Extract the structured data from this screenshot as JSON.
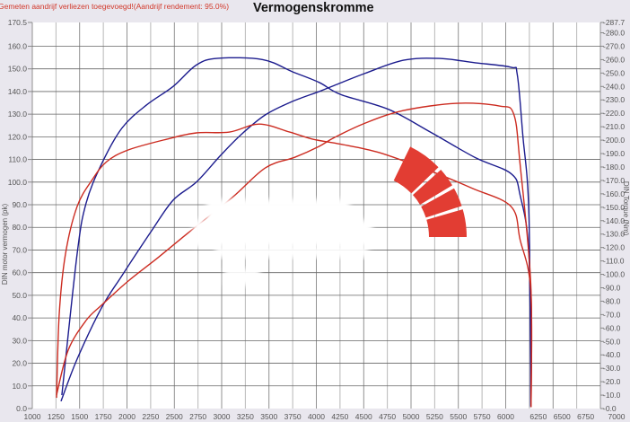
{
  "header": {
    "note": "Gemeten aandrijf verliezen toegevoegd!(Aandrijf rendement: 95.0%)",
    "title": "Vermogenskromme"
  },
  "colors": {
    "tuned": "#1c1c8e",
    "stock": "#cc2b20",
    "logo": "#e23d33",
    "background": "#e9e7ee",
    "plot": "#ffffff"
  },
  "chart_data": {
    "type": "line",
    "title": "Vermogenskromme",
    "xlabel": "",
    "ylabel_left": "DIN motor vermogen (pk)",
    "ylabel_right": "DIN Torque (Nm)",
    "xlim": [
      1000,
      7000
    ],
    "ylim_left": [
      0,
      170.5
    ],
    "ylim_right": [
      0,
      287.7
    ],
    "grid": true,
    "x_ticks": [
      "1000",
      "1250",
      "1500",
      "1750",
      "2000",
      "2250",
      "2500",
      "2750",
      "3000",
      "3250",
      "3500",
      "3750",
      "4000",
      "4250",
      "4500",
      "4750",
      "5000",
      "5250",
      "5500",
      "5750",
      "6000",
      "6250",
      "6500",
      "6750",
      "7000"
    ],
    "left_ticks": [
      "0.0",
      "10.0",
      "20.0",
      "30.0",
      "40.0",
      "50.0",
      "60.0",
      "70.0",
      "80.0",
      "90.0",
      "100.0",
      "110.0",
      "120.0",
      "130.0",
      "140.0",
      "150.0",
      "160.0",
      "170.5"
    ],
    "right_ticks": [
      "0.0",
      "10.0",
      "20.0",
      "30.0",
      "40.0",
      "50.0",
      "60.0",
      "70.0",
      "80.0",
      "90.0",
      "100.0",
      "110.0",
      "120.0",
      "130.0",
      "140.0",
      "150.0",
      "160.0",
      "170.0",
      "180.0",
      "190.0",
      "200.0",
      "210.0",
      "220.0",
      "230.0",
      "240.0",
      "250.0",
      "260.0",
      "270.0",
      "280.0",
      "287.7"
    ],
    "series": [
      {
        "color": "#1c1c8e",
        "axis": "right",
        "x": [
          1312,
          1473,
          1568,
          1730,
          1947,
          2203,
          2487,
          2733,
          2960,
          3434,
          3746,
          4030,
          4258,
          4760,
          5205,
          5678,
          6057,
          6152,
          6245,
          6265
        ],
        "y": [
          10,
          115,
          153,
          182,
          209,
          226,
          240,
          256,
          261,
          260,
          251,
          243,
          234,
          223,
          206,
          187,
          175,
          159,
          115,
          1
        ]
      },
      {
        "color": "#1c1c8e",
        "axis": "left",
        "x": [
          1303,
          1473,
          1730,
          1947,
          2260,
          2487,
          2733,
          2989,
          3206,
          3462,
          3746,
          4030,
          4191,
          4513,
          4920,
          5300,
          5678,
          6057,
          6122,
          6180,
          6245,
          6265
        ],
        "y": [
          3.2,
          21.8,
          44.4,
          58.7,
          78.5,
          92,
          100,
          111.8,
          121,
          129.7,
          135.6,
          140,
          142.7,
          148,
          153.8,
          154.6,
          152.7,
          150.7,
          147.5,
          121,
          86,
          1
        ]
      },
      {
        "color": "#cc2b20",
        "axis": "right",
        "x": [
          1256,
          1284,
          1350,
          1473,
          1634,
          1786,
          2013,
          2420,
          2733,
          3083,
          3396,
          3718,
          3964,
          4258,
          4665,
          5205,
          5650,
          6057,
          6152,
          6265,
          6268
        ],
        "y": [
          8,
          70,
          115,
          150.5,
          170.6,
          184,
          192.7,
          200.7,
          205.4,
          206,
          212,
          206,
          200.7,
          197,
          190.7,
          177,
          164,
          150.5,
          125.8,
          88,
          1
        ]
      },
      {
        "color": "#cc2b20",
        "axis": "left",
        "x": [
          1256,
          1379,
          1568,
          1730,
          2013,
          2326,
          2638,
          3112,
          3462,
          3775,
          4030,
          4191,
          4513,
          4920,
          5489,
          5933,
          6085,
          6152,
          6265,
          6268
        ],
        "y": [
          6,
          25.8,
          38.9,
          45.6,
          56.3,
          66.6,
          77.3,
          93.2,
          106.3,
          111,
          115.8,
          119.7,
          126,
          131.6,
          134.8,
          133.6,
          130,
          107.9,
          54.7,
          1
        ]
      }
    ]
  }
}
